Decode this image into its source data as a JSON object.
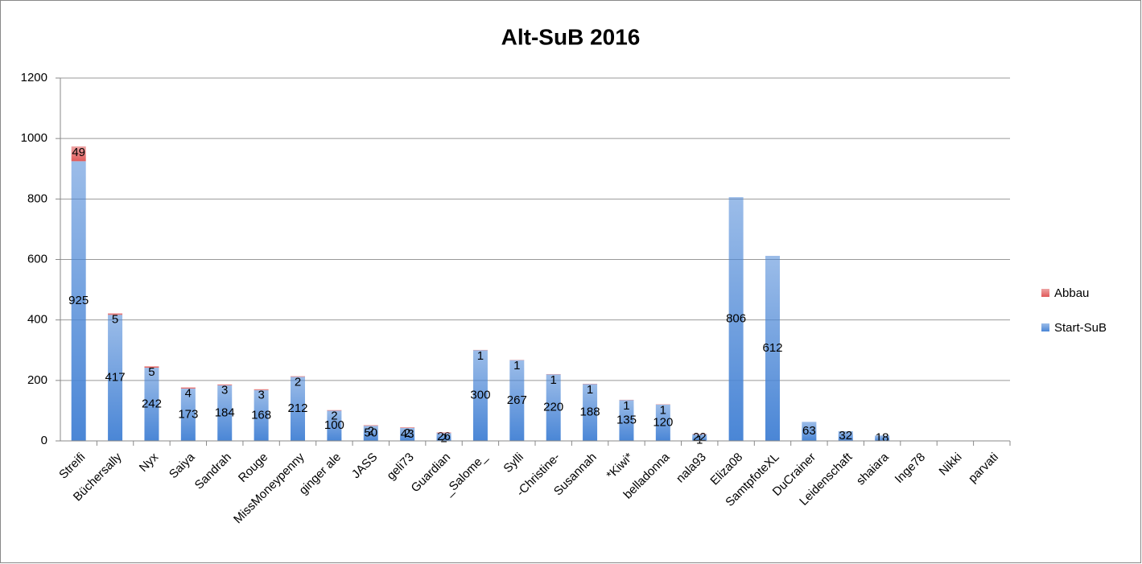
{
  "chart_data": {
    "type": "stacked-bar",
    "title": "Alt-SuB 2016",
    "categories": [
      "Streifi",
      "Büchersally",
      "Nyx",
      "Saiya",
      "Sandrah",
      "Rouge",
      "MissMoneypenny",
      "ginger ale",
      "JASS",
      "geli73",
      "Guardian",
      "_Salome_",
      "Sylli",
      "-Christine-",
      "Susannah",
      "*Kiwi*",
      "belladonna",
      "nala93",
      "Eliza08",
      "SamtpfoteXL",
      "DuCrainer",
      "Leidenschaft",
      "shaiara",
      "Inge78",
      "Nikki",
      "parvati"
    ],
    "series": [
      {
        "name": "Start-SuB",
        "color": "#4a86d6",
        "values": [
          925,
          417,
          242,
          173,
          184,
          168,
          212,
          100,
          50,
          43,
          26,
          300,
          267,
          220,
          188,
          135,
          120,
          22,
          806,
          612,
          63,
          32,
          18,
          null,
          null,
          null
        ]
      },
      {
        "name": "Abbau",
        "color": "#e05a5a",
        "values": [
          49,
          5,
          5,
          4,
          3,
          3,
          2,
          2,
          2,
          2,
          2,
          1,
          1,
          1,
          1,
          1,
          1,
          1,
          null,
          null,
          null,
          null,
          null,
          null,
          null,
          null
        ]
      }
    ],
    "ylim": [
      0,
      1200
    ],
    "yticks": [
      0,
      200,
      400,
      600,
      800,
      1000,
      1200
    ],
    "grid": true,
    "legend": "right"
  }
}
